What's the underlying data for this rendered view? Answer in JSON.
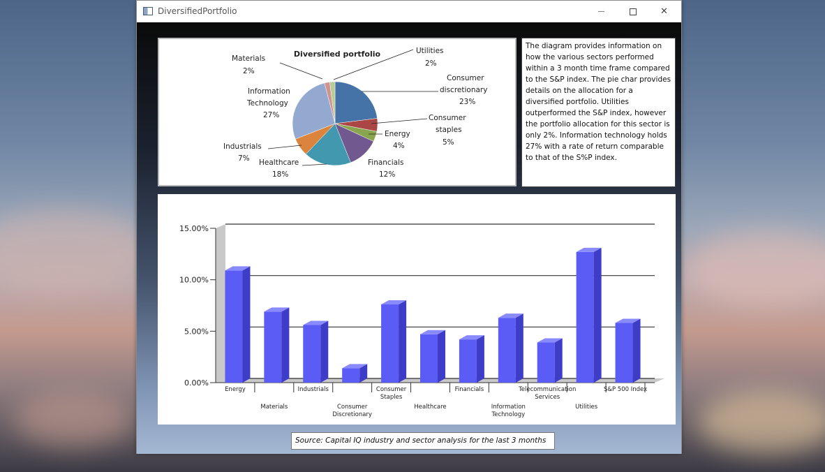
{
  "window": {
    "title": "DiversifiedPortfolio",
    "minimize_glyph": "—",
    "maximize_glyph": "☐",
    "close_glyph": "✕"
  },
  "pie_chart_data": {
    "type": "pie",
    "title": "Diversified portfolio",
    "slices": [
      {
        "label": "Consumer discretionary",
        "value": 23,
        "pct": "23%",
        "color": "#4572a7"
      },
      {
        "label": "Consumer staples",
        "value": 5,
        "pct": "5%",
        "color": "#aa4643"
      },
      {
        "label": "Energy",
        "value": 4,
        "pct": "4%",
        "color": "#89a54e"
      },
      {
        "label": "Financials",
        "value": 12,
        "pct": "12%",
        "color": "#71588f"
      },
      {
        "label": "Healthcare",
        "value": 18,
        "pct": "18%",
        "color": "#4198af"
      },
      {
        "label": "Industrials",
        "value": 7,
        "pct": "7%",
        "color": "#db843d"
      },
      {
        "label": "Information Technology",
        "value": 27,
        "pct": "27%",
        "color": "#93a9cf"
      },
      {
        "label": "Materials",
        "value": 2,
        "pct": "2%",
        "color": "#d19392"
      },
      {
        "label": "Utilities",
        "value": 2,
        "pct": "2%",
        "color": "#b9cd96"
      }
    ],
    "labels": {
      "materials": [
        "Materials",
        "2%"
      ],
      "utilities": [
        "Utilities",
        "2%"
      ],
      "consumer_discretionary": [
        "Consumer",
        "discretionary",
        "23%"
      ],
      "information_technology": [
        "Information",
        "Technology",
        "27%"
      ],
      "consumer_staples": [
        "Consumer",
        "staples",
        "5%"
      ],
      "energy": [
        "Energy",
        "4%"
      ],
      "industrials": [
        "Industrials",
        "7%"
      ],
      "healthcare": [
        "Healthcare",
        "18%"
      ],
      "financials": [
        "Financials",
        "12%"
      ]
    }
  },
  "description": "The diagram provides information on how the various sectors performed within a 3 month time frame compared to the S&P index.   The pie char provides details on the allocation for a diversified portfolio.  Utilities outperformed the S&P index, however the portfolio allocation for this sector is only 2%. Information technology holds 27% with a rate of return comparable to that of the S%P index.",
  "chart_data": {
    "type": "bar",
    "categories": [
      "Energy",
      "Materials",
      "Industrials",
      "Consumer Discretionary",
      "Consumer Staples",
      "Healthcare",
      "Financials",
      "Information Technology",
      "Telecommunication Services",
      "Utilities",
      "S&P 500 Index"
    ],
    "category_lines": [
      [
        "Energy"
      ],
      [
        "Materials"
      ],
      [
        "Industrials"
      ],
      [
        "Consumer",
        "Discretionary"
      ],
      [
        "Consumer",
        "Staples"
      ],
      [
        "Healthcare"
      ],
      [
        "Financials"
      ],
      [
        "Information",
        "Technology"
      ],
      [
        "Telecommunication",
        "Services"
      ],
      [
        "Utilities"
      ],
      [
        "S&P 500 Index"
      ]
    ],
    "values": [
      10.9,
      6.9,
      5.6,
      1.4,
      7.6,
      4.7,
      4.2,
      6.3,
      3.9,
      12.7,
      5.8
    ],
    "yticks": [
      "0.00%",
      "5.00%",
      "10.00%",
      "15.00%"
    ],
    "ylim": [
      0,
      15
    ],
    "bar_color": "#5b5bf5",
    "grid": true
  },
  "source": "Source: Capital IQ industry and sector analysis for the last 3 months"
}
